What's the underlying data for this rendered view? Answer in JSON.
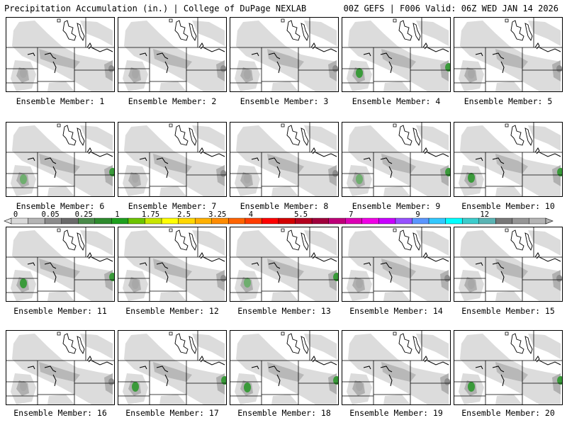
{
  "header": {
    "title": "Precipitation Accumulation (in.) | College of DuPage NEXLAB",
    "run_info": "00Z GEFS | F006 Valid: 06Z WED JAN 14 2026"
  },
  "member_label_prefix": "Ensemble Member: ",
  "members": [
    {
      "id": 1,
      "label": "Ensemble Member: 1",
      "peak": "#a8a8a8",
      "green": false
    },
    {
      "id": 2,
      "label": "Ensemble Member: 2",
      "peak": "#a8a8a8",
      "green": false
    },
    {
      "id": 3,
      "label": "Ensemble Member: 3",
      "peak": "#a8a8a8",
      "green": false
    },
    {
      "id": 4,
      "label": "Ensemble Member: 4",
      "peak": "#3a9a3a",
      "green": true
    },
    {
      "id": 5,
      "label": "Ensemble Member: 5",
      "peak": "#a8a8a8",
      "green": false
    },
    {
      "id": 6,
      "label": "Ensemble Member: 6",
      "peak": "#6fae6f",
      "green": true
    },
    {
      "id": 7,
      "label": "Ensemble Member: 7",
      "peak": "#a8a8a8",
      "green": false
    },
    {
      "id": 8,
      "label": "Ensemble Member: 8",
      "peak": "#a8a8a8",
      "green": false
    },
    {
      "id": 9,
      "label": "Ensemble Member: 9",
      "peak": "#6fae6f",
      "green": true
    },
    {
      "id": 10,
      "label": "Ensemble Member: 10",
      "peak": "#3a9a3a",
      "green": true
    },
    {
      "id": 11,
      "label": "Ensemble Member: 11",
      "peak": "#3a9a3a",
      "green": true
    },
    {
      "id": 12,
      "label": "Ensemble Member: 12",
      "peak": "#a8a8a8",
      "green": false
    },
    {
      "id": 13,
      "label": "Ensemble Member: 13",
      "peak": "#6fae6f",
      "green": true
    },
    {
      "id": 14,
      "label": "Ensemble Member: 14",
      "peak": "#a8a8a8",
      "green": false
    },
    {
      "id": 15,
      "label": "Ensemble Member: 15",
      "peak": "#a8a8a8",
      "green": false
    },
    {
      "id": 16,
      "label": "Ensemble Member: 16",
      "peak": "#a8a8a8",
      "green": false
    },
    {
      "id": 17,
      "label": "Ensemble Member: 17",
      "peak": "#3a9a3a",
      "green": true
    },
    {
      "id": 18,
      "label": "Ensemble Member: 18",
      "peak": "#3a9a3a",
      "green": true
    },
    {
      "id": 19,
      "label": "Ensemble Member: 19",
      "peak": "#a8a8a8",
      "green": false
    },
    {
      "id": 20,
      "label": "Ensemble Member: 20",
      "peak": "#3a9a3a",
      "green": true
    }
  ],
  "colorbar": {
    "units": "in.",
    "labels": [
      "0",
      "0.05",
      "0.25",
      "1",
      "1.75",
      "2.5",
      "3.25",
      "4",
      "5.5",
      "7",
      "9",
      "12"
    ],
    "colors": [
      "#d9d9d9",
      "#b4b4b4",
      "#8c8c8c",
      "#6a6a6a",
      "#4a8a4a",
      "#2e8b2e",
      "#1ea01e",
      "#6cc400",
      "#c8e600",
      "#ffff00",
      "#ffd700",
      "#ffb000",
      "#ff8c00",
      "#ff6400",
      "#ff3c00",
      "#ff0000",
      "#d20000",
      "#b4001e",
      "#a0003c",
      "#be0078",
      "#dc00b4",
      "#f000e6",
      "#c800ff",
      "#9650ff",
      "#5a96ff",
      "#32c8ff",
      "#00ffff",
      "#3ccccc",
      "#5ab4b4",
      "#787878",
      "#969696",
      "#b4b4b4"
    ]
  }
}
